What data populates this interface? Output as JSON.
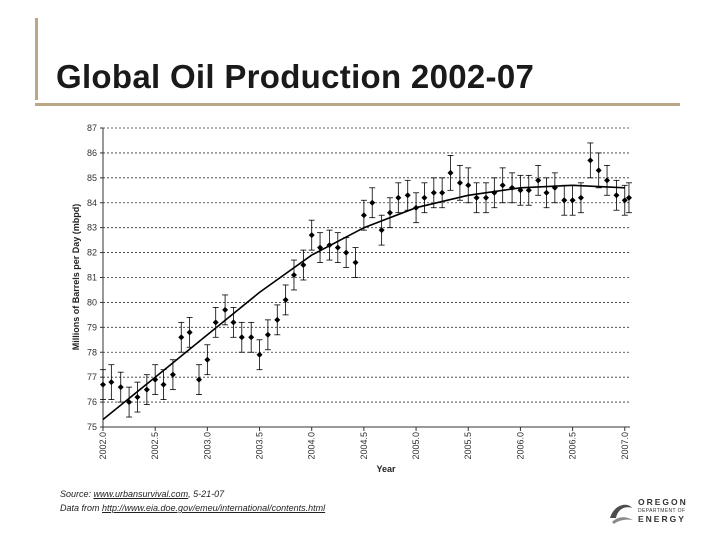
{
  "slide": {
    "title": "Global Oil Production 2002-07"
  },
  "source": {
    "prefix": "Source: ",
    "link": "www.urbansurvival.com",
    "suffix": ", 5-21-07",
    "data_prefix": "Data from ",
    "data_link": "http://www.eia.doe.gov/emeu/international/contents.html"
  },
  "logo": {
    "line1": "OREGON",
    "line2": "DEPARTMENT OF",
    "line3": "ENERGY"
  },
  "colors": {
    "accent_rule": "#b9a883",
    "points": "#000000",
    "grid": "#333333"
  },
  "chart_data": {
    "type": "scatter",
    "title": "",
    "xlabel": "Year",
    "ylabel": "Millions of Barrels per Day (mbpd)",
    "xlim": [
      2002.0,
      2007.05
    ],
    "ylim": [
      75,
      87
    ],
    "grid": "horizontal dashed",
    "x_ticks": [
      "2002.0",
      "2002.5",
      "2003.0",
      "2003.5",
      "2004.0",
      "2004.5",
      "2005.0",
      "2005.5",
      "2006.0",
      "2006.5",
      "2007.0"
    ],
    "y_ticks": [
      "75",
      "76",
      "77",
      "78",
      "79",
      "80",
      "81",
      "82",
      "83",
      "84",
      "85",
      "86",
      "87"
    ],
    "y_tick_labels": [
      "75",
      "76",
      "77",
      "78",
      "79",
      "80",
      "81",
      "82",
      "83",
      "84",
      "85",
      "86",
      "87"
    ],
    "series": [
      {
        "values": [
          [
            2002.0,
            76.7,
            0.6
          ],
          [
            2002.08,
            76.8,
            0.7
          ],
          [
            2002.17,
            76.6,
            0.6
          ],
          [
            2002.25,
            76.0,
            0.6
          ],
          [
            2002.33,
            76.2,
            0.6
          ],
          [
            2002.42,
            76.5,
            0.6
          ],
          [
            2002.5,
            76.9,
            0.6
          ],
          [
            2002.58,
            76.7,
            0.6
          ],
          [
            2002.67,
            77.1,
            0.6
          ],
          [
            2002.75,
            78.6,
            0.6
          ],
          [
            2002.83,
            78.8,
            0.6
          ],
          [
            2002.92,
            76.9,
            0.6
          ],
          [
            2003.0,
            77.7,
            0.6
          ],
          [
            2003.08,
            79.2,
            0.6
          ],
          [
            2003.17,
            79.7,
            0.6
          ],
          [
            2003.25,
            79.2,
            0.6
          ],
          [
            2003.33,
            78.6,
            0.6
          ],
          [
            2003.42,
            78.6,
            0.6
          ],
          [
            2003.5,
            77.9,
            0.6
          ],
          [
            2003.58,
            78.7,
            0.6
          ],
          [
            2003.67,
            79.3,
            0.6
          ],
          [
            2003.75,
            80.1,
            0.6
          ],
          [
            2003.83,
            81.1,
            0.6
          ],
          [
            2003.92,
            81.5,
            0.6
          ],
          [
            2004.0,
            82.7,
            0.6
          ],
          [
            2004.08,
            82.2,
            0.6
          ],
          [
            2004.17,
            82.3,
            0.6
          ],
          [
            2004.25,
            82.2,
            0.6
          ],
          [
            2004.33,
            82.0,
            0.6
          ],
          [
            2004.42,
            81.6,
            0.6
          ],
          [
            2004.5,
            83.5,
            0.6
          ],
          [
            2004.58,
            84.0,
            0.6
          ],
          [
            2004.67,
            82.9,
            0.6
          ],
          [
            2004.75,
            83.6,
            0.6
          ],
          [
            2004.83,
            84.2,
            0.6
          ],
          [
            2004.92,
            84.3,
            0.6
          ],
          [
            2005.0,
            83.8,
            0.6
          ],
          [
            2005.08,
            84.2,
            0.6
          ],
          [
            2005.17,
            84.4,
            0.6
          ],
          [
            2005.25,
            84.4,
            0.6
          ],
          [
            2005.33,
            85.2,
            0.7
          ],
          [
            2005.42,
            84.8,
            0.7
          ],
          [
            2005.5,
            84.7,
            0.7
          ],
          [
            2005.58,
            84.2,
            0.6
          ],
          [
            2005.67,
            84.2,
            0.6
          ],
          [
            2005.75,
            84.4,
            0.6
          ],
          [
            2005.83,
            84.7,
            0.7
          ],
          [
            2005.92,
            84.6,
            0.6
          ],
          [
            2006.0,
            84.5,
            0.6
          ],
          [
            2006.08,
            84.5,
            0.6
          ],
          [
            2006.17,
            84.9,
            0.6
          ],
          [
            2006.25,
            84.4,
            0.6
          ],
          [
            2006.33,
            84.6,
            0.6
          ],
          [
            2006.42,
            84.1,
            0.6
          ],
          [
            2006.5,
            84.1,
            0.6
          ],
          [
            2006.58,
            84.2,
            0.6
          ],
          [
            2006.67,
            85.7,
            0.7
          ],
          [
            2006.75,
            85.3,
            0.7
          ],
          [
            2006.83,
            84.9,
            0.6
          ],
          [
            2006.92,
            84.3,
            0.6
          ],
          [
            2007.0,
            84.1,
            0.6
          ],
          [
            2007.04,
            84.2,
            0.6
          ]
        ]
      }
    ],
    "trend_line": {
      "type": "polynomial",
      "x": [
        2002.0,
        2002.5,
        2003.0,
        2003.5,
        2004.0,
        2004.5,
        2005.0,
        2005.5,
        2006.0,
        2006.5,
        2007.0
      ],
      "y": [
        75.3,
        77.0,
        78.7,
        80.4,
        81.9,
        83.0,
        83.8,
        84.3,
        84.6,
        84.7,
        84.6
      ]
    }
  }
}
